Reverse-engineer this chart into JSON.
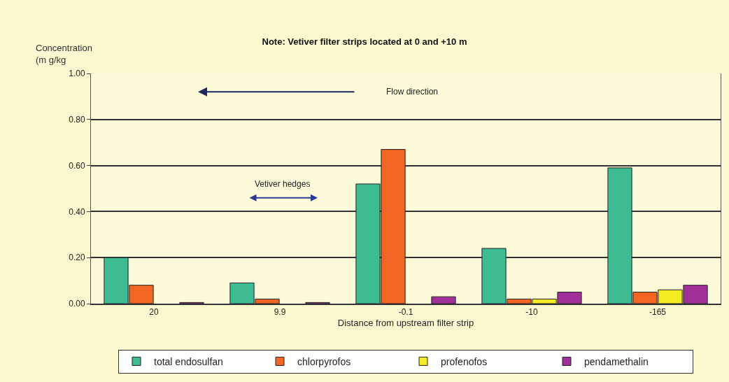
{
  "chart_data": {
    "type": "bar",
    "title": "Note: Vetiver filter strips located at 0 and +10 m",
    "xlabel": "Distance from upstream filter strip",
    "ylabel": "Concentration\n(m g/kg",
    "categories": [
      "20",
      "9.9",
      "-0.1",
      "-10",
      "-165"
    ],
    "series": [
      {
        "name": "total endosulfan",
        "color": "#3dbb93",
        "values": [
          0.2,
          0.09,
          0.52,
          0.24,
          0.59
        ]
      },
      {
        "name": "chlorpyrofos",
        "color": "#f26522",
        "values": [
          0.08,
          0.02,
          0.67,
          0.02,
          0.05
        ]
      },
      {
        "name": "profenofos",
        "color": "#f5eb24",
        "values": [
          null,
          null,
          null,
          0.02,
          0.06
        ]
      },
      {
        "name": "pendamethalin",
        "color": "#a1309a",
        "values": [
          0.005,
          0.005,
          0.03,
          0.05,
          0.08
        ]
      }
    ],
    "ylim": [
      0,
      1
    ],
    "yticks": [
      {
        "value": 0,
        "label": "0.00"
      },
      {
        "value": 0.2,
        "label": "0.20"
      },
      {
        "value": 0.4,
        "label": "0.40"
      },
      {
        "value": 0.6,
        "label": "0.60"
      },
      {
        "value": 0.8,
        "label": "0.80"
      },
      {
        "value": 1,
        "label": "1.00"
      }
    ],
    "grid": "y",
    "legend": "bottom",
    "annotations": [
      "Flow direction",
      "Vetiver hedges"
    ]
  }
}
